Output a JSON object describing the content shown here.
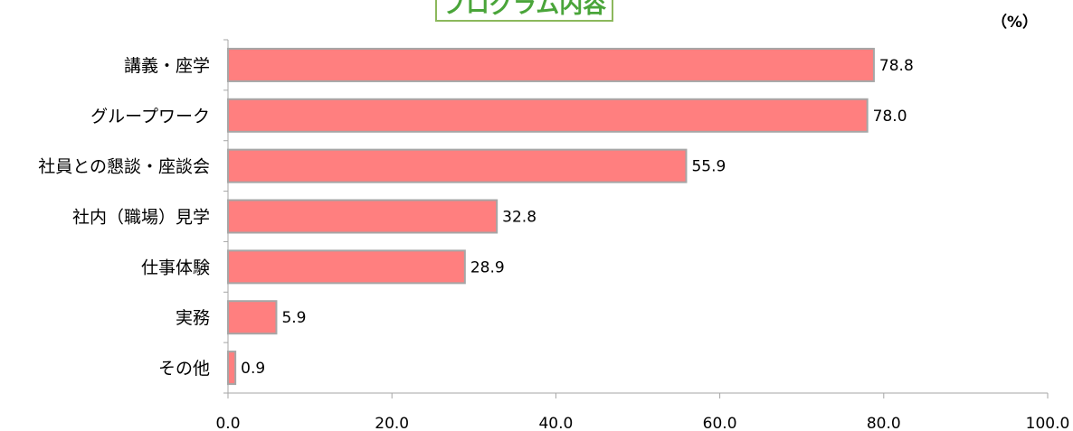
{
  "chart_data": {
    "type": "bar",
    "orientation": "horizontal",
    "title": "プログラム内容",
    "unit_label": "（%）",
    "categories": [
      "講義・座学",
      "グループワーク",
      "社員との懇談・座談会",
      "社内（職場）見学",
      "仕事体験",
      "実務",
      "その他"
    ],
    "values": [
      78.8,
      78.0,
      55.9,
      32.8,
      28.9,
      5.9,
      0.9
    ],
    "value_labels": [
      "78.8",
      "78.0",
      "55.9",
      "32.8",
      "28.9",
      "5.9",
      "0.9"
    ],
    "xlim": [
      0,
      100
    ],
    "xticks": [
      0,
      20,
      40,
      60,
      80,
      100
    ],
    "xtick_labels": [
      "0.0",
      "20.0",
      "40.0",
      "60.0",
      "80.0",
      "100.0"
    ],
    "grid": false,
    "colors": {
      "bar": "#ff7f7f",
      "bar_border": "#a6a6a6",
      "title_text": "#4aa53a",
      "title_border": "#8cb85c"
    }
  }
}
